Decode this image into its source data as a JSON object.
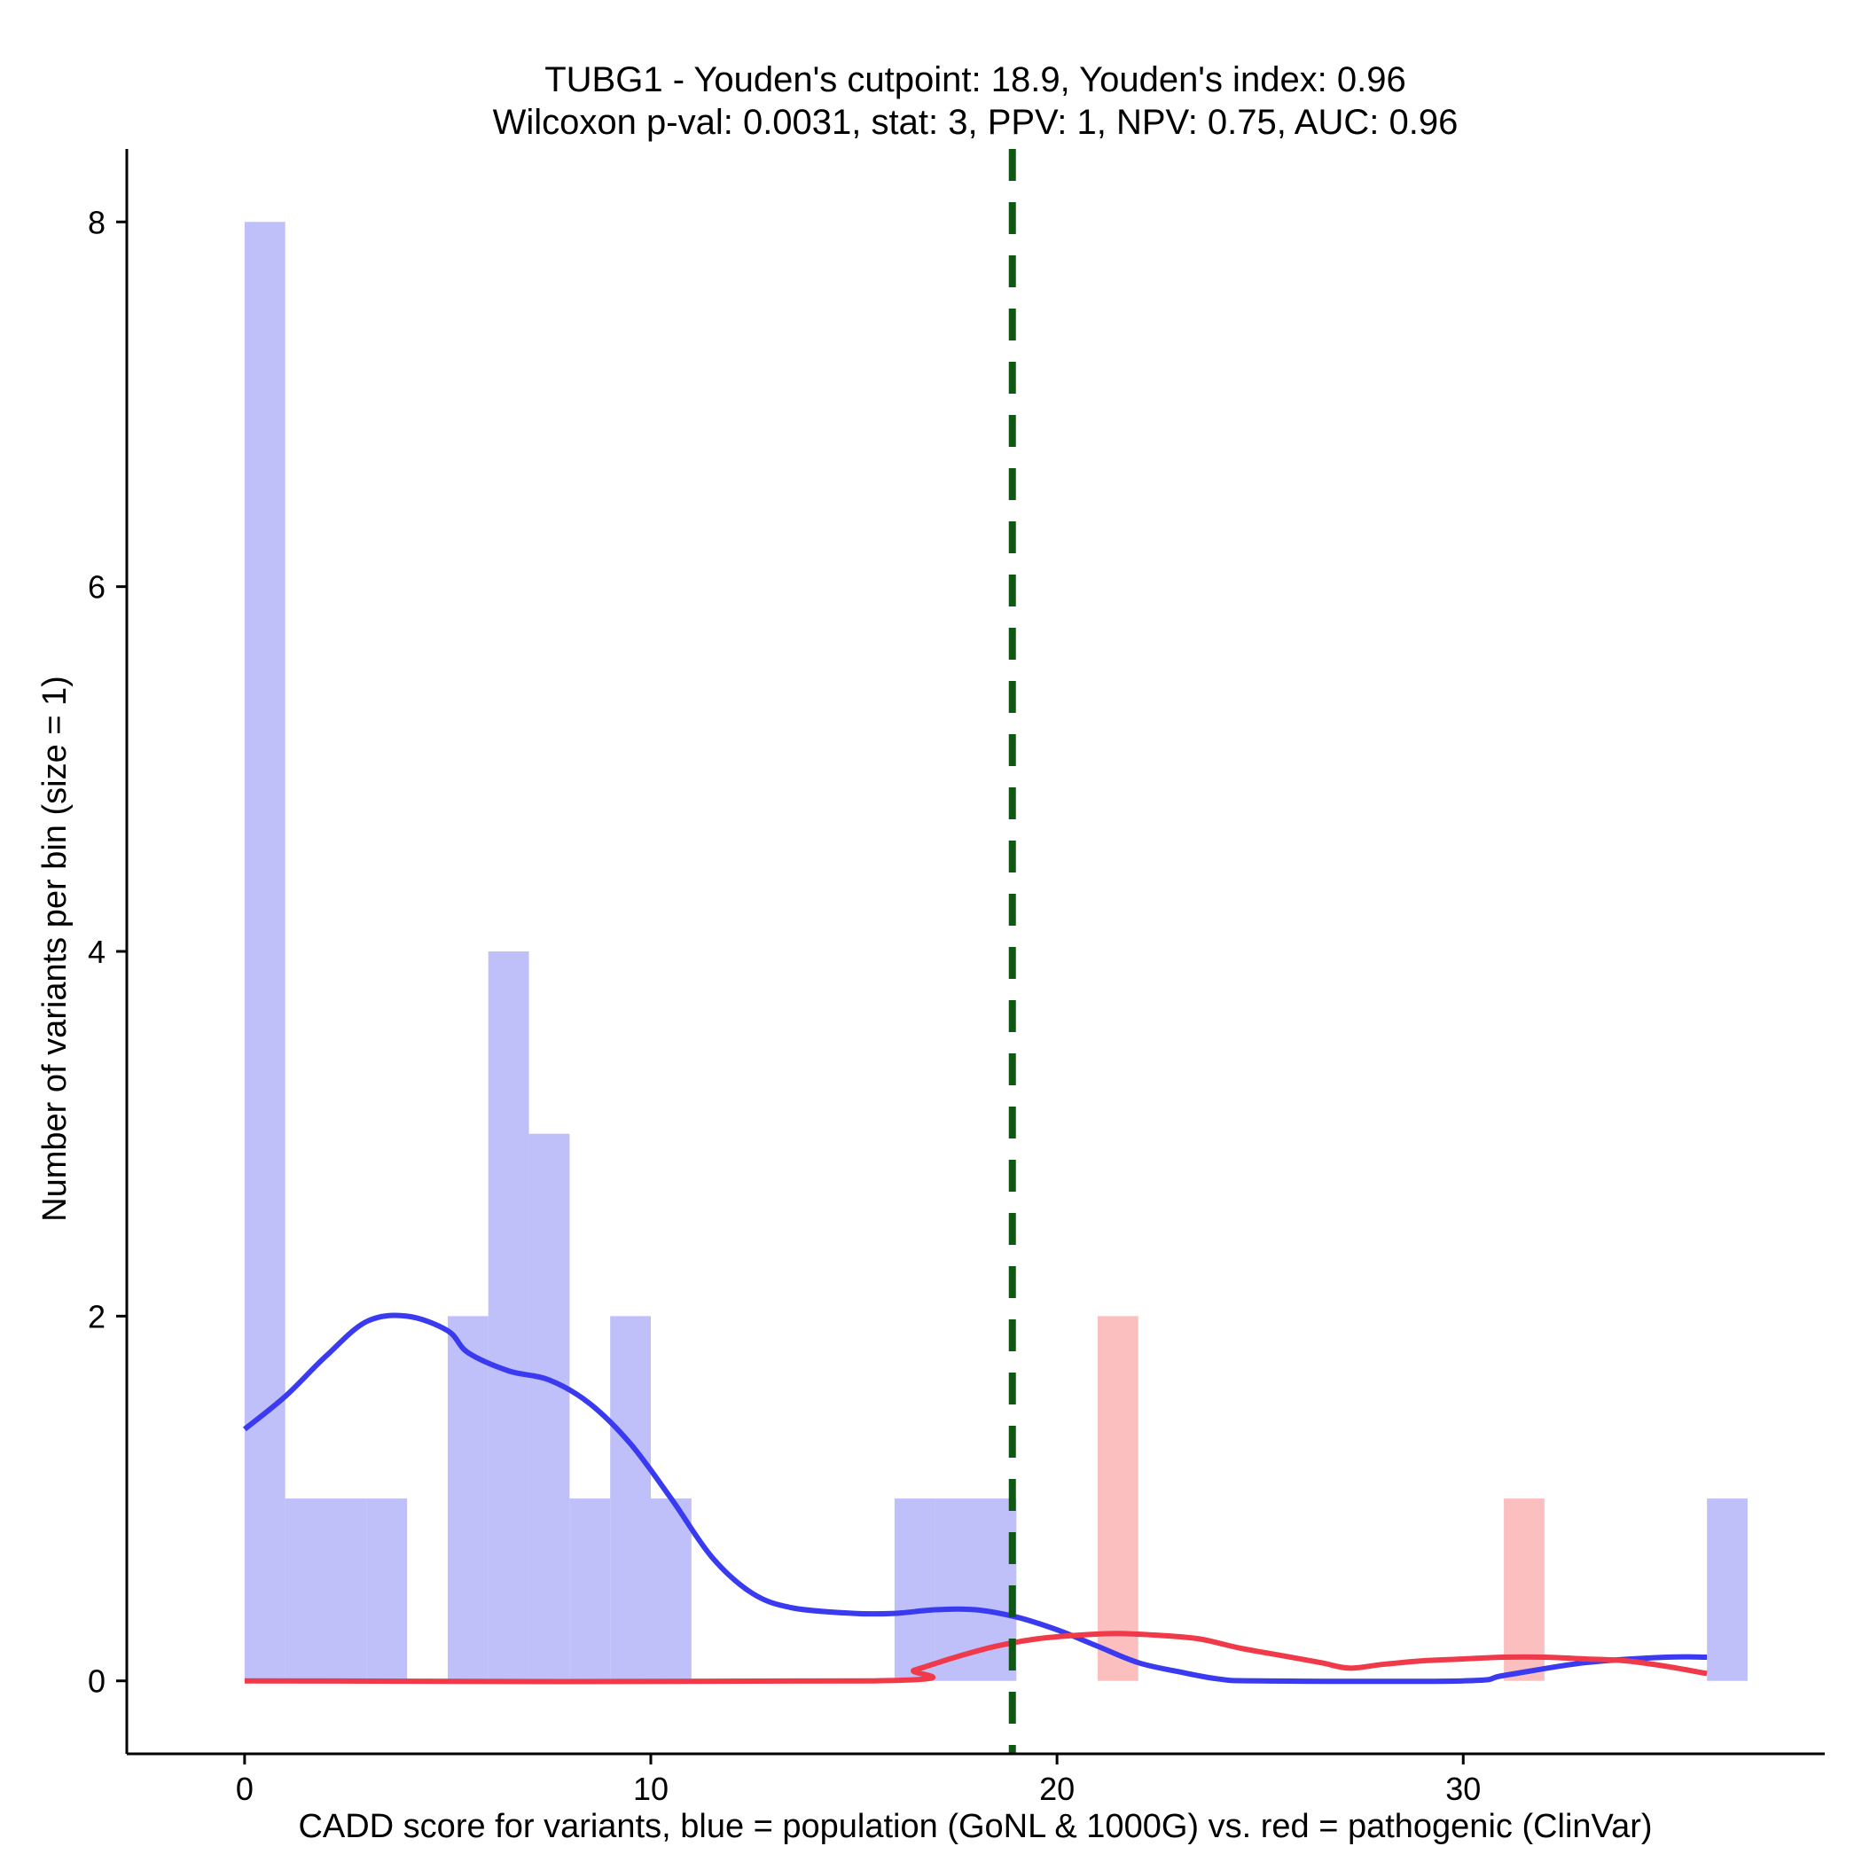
{
  "chart_data": {
    "type": "bar",
    "title": "TUBG1 - Youden's cutpoint: 18.9, Youden's index: 0.96",
    "subtitle": "Wilcoxon p-val: 0.0031, stat: 3, PPV: 1, NPV: 0.75, AUC: 0.96",
    "xlabel": "CADD score for variants, blue = population (GoNL & 1000G) vs. red = pathogenic (ClinVar)",
    "ylabel": "Number of variants per bin (size = 1)",
    "xlim": [
      -2.9,
      38.9
    ],
    "ylim": [
      -0.4,
      8.4
    ],
    "x_ticks": [
      0,
      10,
      20,
      30
    ],
    "y_ticks": [
      0,
      2,
      4,
      6,
      8
    ],
    "bin_size": 1,
    "cutpoint": 18.9,
    "colors": {
      "population_bar": "#bfbffa",
      "pathogenic_bar": "#fcbfbf",
      "population_line": "#3a3af0",
      "pathogenic_line": "#f03a4a",
      "cutpoint_line": "#0f5712"
    },
    "series": [
      {
        "name": "population",
        "bins": [
          {
            "x": 0,
            "count": 8
          },
          {
            "x": 1,
            "count": 1
          },
          {
            "x": 2,
            "count": 1
          },
          {
            "x": 3,
            "count": 1
          },
          {
            "x": 5,
            "count": 2
          },
          {
            "x": 6,
            "count": 4
          },
          {
            "x": 7,
            "count": 3
          },
          {
            "x": 8,
            "count": 1
          },
          {
            "x": 9,
            "count": 2
          },
          {
            "x": 10,
            "count": 1
          },
          {
            "x": 16,
            "count": 1
          },
          {
            "x": 17,
            "count": 1
          },
          {
            "x": 18,
            "count": 1
          },
          {
            "x": 36,
            "count": 1
          }
        ],
        "density_curve": [
          [
            0,
            1.38
          ],
          [
            1,
            1.56
          ],
          [
            2,
            1.78
          ],
          [
            3,
            1.97
          ],
          [
            4,
            2.0
          ],
          [
            5,
            1.92
          ],
          [
            5.5,
            1.8
          ],
          [
            6.5,
            1.7
          ],
          [
            7.5,
            1.65
          ],
          [
            8.5,
            1.52
          ],
          [
            9.5,
            1.3
          ],
          [
            10.5,
            1.0
          ],
          [
            11.5,
            0.68
          ],
          [
            12.5,
            0.48
          ],
          [
            13.5,
            0.4
          ],
          [
            15,
            0.37
          ],
          [
            16,
            0.37
          ],
          [
            17,
            0.39
          ],
          [
            18,
            0.39
          ],
          [
            19,
            0.35
          ],
          [
            20,
            0.28
          ],
          [
            21,
            0.19
          ],
          [
            22,
            0.1
          ],
          [
            23,
            0.05
          ],
          [
            24,
            0.01
          ],
          [
            25,
            0.0
          ],
          [
            30,
            0.0
          ],
          [
            31,
            0.03
          ],
          [
            33,
            0.1
          ],
          [
            35,
            0.13
          ],
          [
            36,
            0.13
          ]
        ]
      },
      {
        "name": "pathogenic",
        "bins": [
          {
            "x": 21,
            "count": 2
          },
          {
            "x": 31,
            "count": 1
          }
        ],
        "density_curve": [
          [
            0,
            0.0
          ],
          [
            15.5,
            0.0
          ],
          [
            16.5,
            0.06
          ],
          [
            17.5,
            0.13
          ],
          [
            18.5,
            0.19
          ],
          [
            19.5,
            0.23
          ],
          [
            20.5,
            0.25
          ],
          [
            21.5,
            0.26
          ],
          [
            22.5,
            0.25
          ],
          [
            23.5,
            0.23
          ],
          [
            24.5,
            0.18
          ],
          [
            25.5,
            0.14
          ],
          [
            26.5,
            0.1
          ],
          [
            27.2,
            0.07
          ],
          [
            28,
            0.09
          ],
          [
            29,
            0.11
          ],
          [
            30,
            0.12
          ],
          [
            31,
            0.13
          ],
          [
            32,
            0.13
          ],
          [
            33,
            0.12
          ],
          [
            34,
            0.11
          ],
          [
            35,
            0.08
          ],
          [
            36,
            0.04
          ]
        ]
      }
    ]
  }
}
